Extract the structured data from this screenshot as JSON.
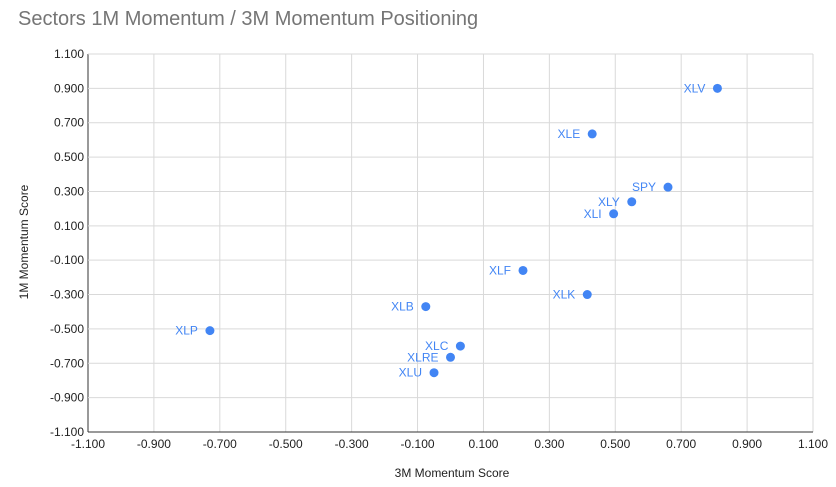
{
  "chart_data": {
    "type": "scatter",
    "title": "Sectors 1M Momentum / 3M Momentum Positioning",
    "xlabel": "3M Momentum Score",
    "ylabel": "1M Momentum Score",
    "xlim": [
      -1.1,
      1.1
    ],
    "ylim": [
      -1.1,
      1.1
    ],
    "x_ticks": [
      "-1.100",
      "-0.900",
      "-0.700",
      "-0.500",
      "-0.300",
      "-0.100",
      "0.100",
      "0.300",
      "0.500",
      "0.700",
      "0.900",
      "1.100"
    ],
    "y_ticks": [
      "1.100",
      "0.900",
      "0.700",
      "0.500",
      "0.300",
      "0.100",
      "-0.100",
      "-0.300",
      "-0.500",
      "-0.700",
      "-0.900",
      "-1.100"
    ],
    "grid": true,
    "point_color": "#4285f4",
    "points": [
      {
        "label": "XLV",
        "x": 0.81,
        "y": 0.9
      },
      {
        "label": "XLE",
        "x": 0.43,
        "y": 0.635
      },
      {
        "label": "SPY",
        "x": 0.66,
        "y": 0.325
      },
      {
        "label": "XLY",
        "x": 0.55,
        "y": 0.24
      },
      {
        "label": "XLI",
        "x": 0.495,
        "y": 0.17
      },
      {
        "label": "XLF",
        "x": 0.22,
        "y": -0.16
      },
      {
        "label": "XLK",
        "x": 0.415,
        "y": -0.3
      },
      {
        "label": "XLB",
        "x": -0.075,
        "y": -0.37
      },
      {
        "label": "XLP",
        "x": -0.73,
        "y": -0.51
      },
      {
        "label": "XLC",
        "x": 0.03,
        "y": -0.6
      },
      {
        "label": "XLRE",
        "x": 0.0,
        "y": -0.665
      },
      {
        "label": "XLU",
        "x": -0.05,
        "y": -0.755
      }
    ]
  }
}
